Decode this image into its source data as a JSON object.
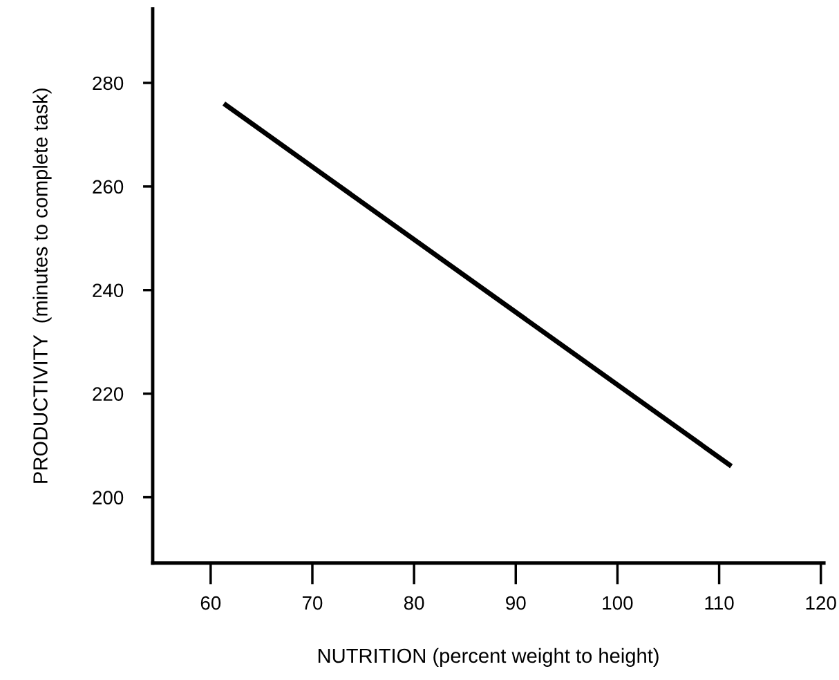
{
  "chart_data": {
    "type": "line",
    "xlabel": "NUTRITION (percent weight to height)",
    "ylabel": "PRODUCTIVITY  (minutes to complete task)",
    "x": [
      61.3,
      111.2
    ],
    "series": [
      {
        "color": "#000000",
        "values": [
          276,
          206
        ]
      }
    ],
    "xlim": [
      54.3,
      120.3
    ],
    "xticks": [
      60,
      70,
      80,
      90,
      100,
      110,
      120
    ],
    "ylim": [
      187.3,
      294.3
    ],
    "yticks": [
      200,
      220,
      240,
      260,
      280
    ],
    "grid": false,
    "marker": "none",
    "line_style": "solid"
  }
}
